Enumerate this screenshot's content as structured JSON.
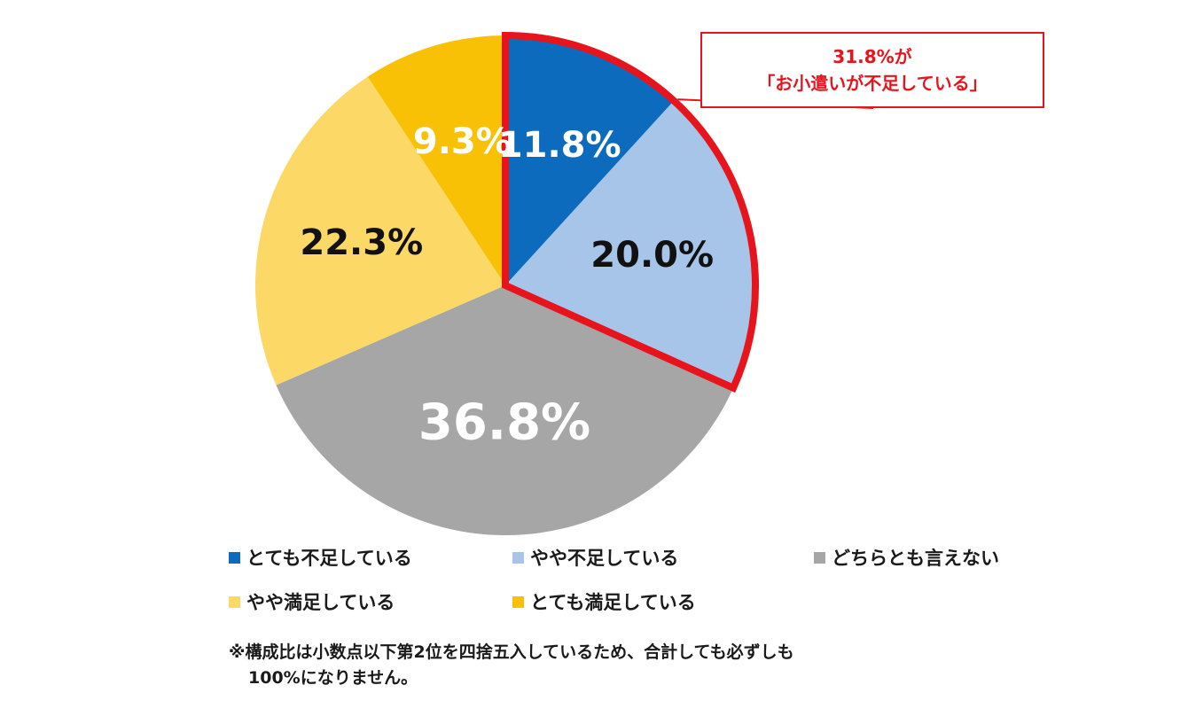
{
  "chart_data": {
    "type": "pie",
    "categories": [
      "とても不足している",
      "やや不足している",
      "どちらとも言えない",
      "やや満足している",
      "とても満足している"
    ],
    "values": [
      11.8,
      20.0,
      36.8,
      22.3,
      9.3
    ],
    "labels": [
      "11.8%",
      "20.0%",
      "36.8%",
      "22.3%",
      "9.3%"
    ],
    "colors": [
      "#0c6bbd",
      "#a6c5e8",
      "#a6a6a6",
      "#fcd966",
      "#f9c105"
    ],
    "label_colors": [
      "#ffffff",
      "#111111",
      "#ffffff",
      "#111111",
      "#ffffff"
    ],
    "highlight": {
      "slices": [
        0,
        1
      ],
      "color": "#e8141c",
      "line1": "31.8%が",
      "line2": "「お小遣いが不足している」"
    },
    "legend": [
      {
        "label": "とても不足している",
        "color": "#0c6bbd"
      },
      {
        "label": "やや不足している",
        "color": "#a6c5e8"
      },
      {
        "label": "どちらとも言えない",
        "color": "#a6a6a6"
      },
      {
        "label": "やや満足している",
        "color": "#fcd966"
      },
      {
        "label": "とても満足している",
        "color": "#f9c105"
      }
    ],
    "note_line1": "※構成比は小数点以下第2位を四捨五入しているため、合計しても必ずしも",
    "note_line2": "100%になりません。"
  }
}
